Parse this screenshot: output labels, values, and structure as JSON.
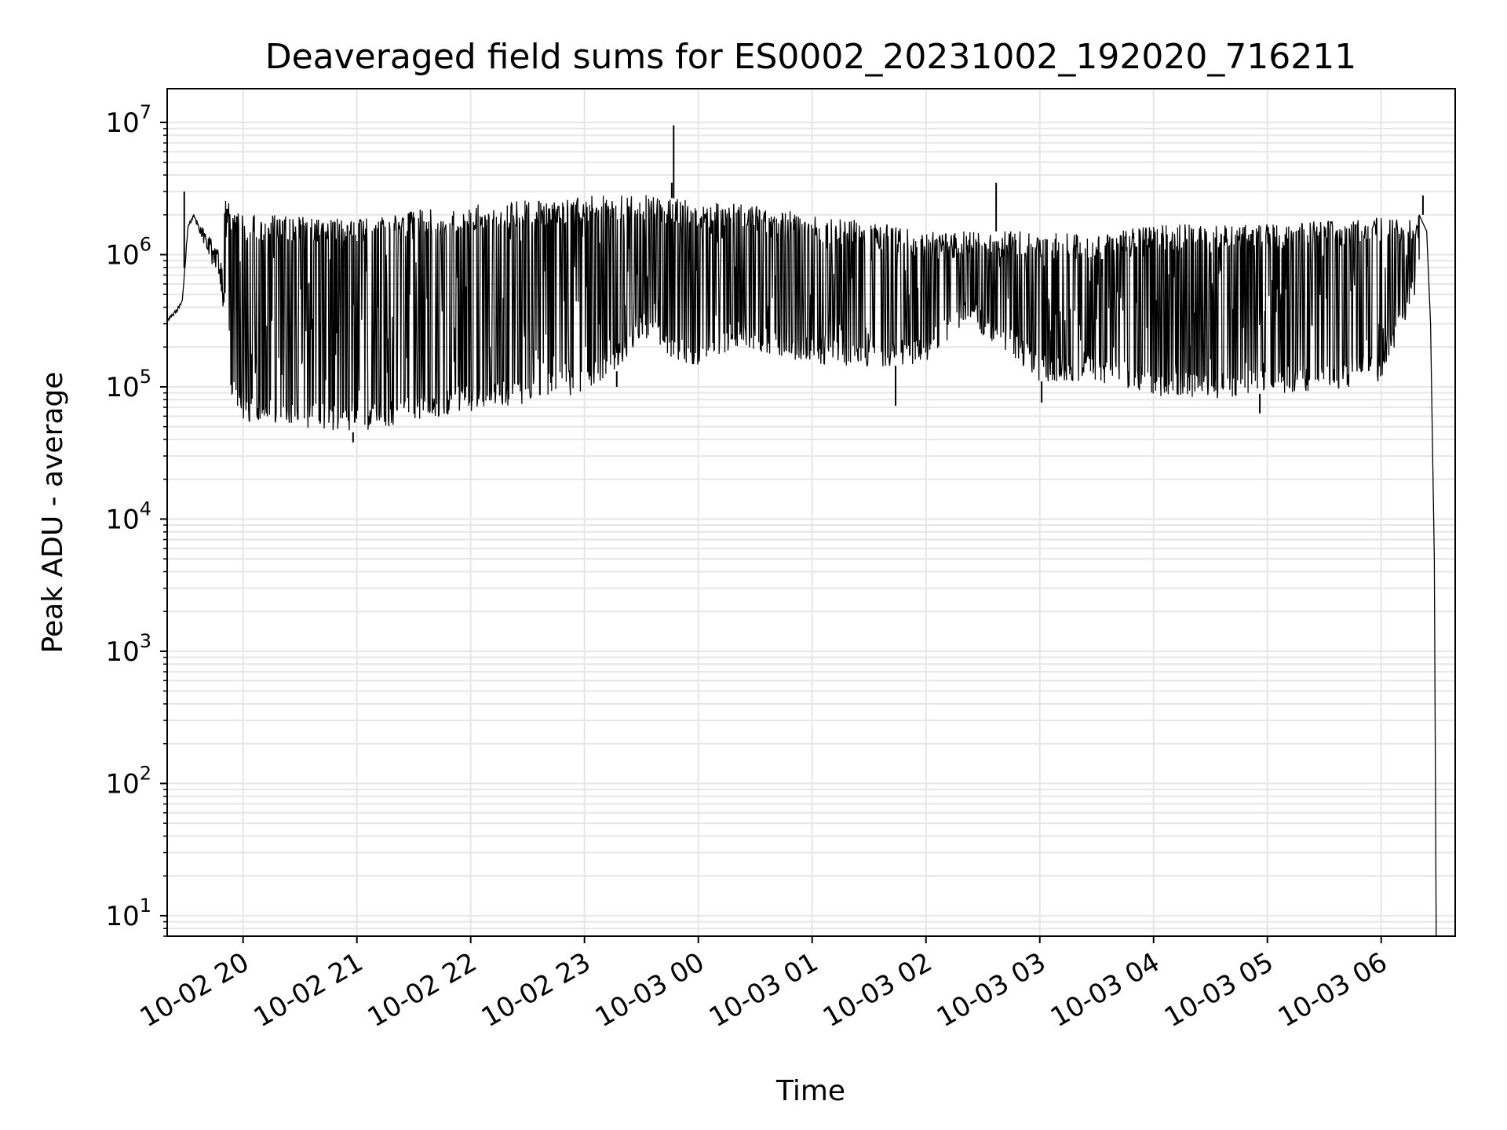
{
  "chart_data": {
    "type": "line",
    "title": "Deaveraged field sums for ES0002_20231002_192020_716211",
    "xlabel": "Time",
    "ylabel": "Peak ADU - average",
    "yscale": "log",
    "ylim": [
      7,
      18000000
    ],
    "xlim": [
      "2023-10-02 19:20",
      "2023-10-03 06:39"
    ],
    "grid": true,
    "legend": "none",
    "line_color": "#000000",
    "grid_color": "#e6e6e6",
    "x_ticks": [
      {
        "value": "2023-10-02 20:00",
        "label": "10-02 20"
      },
      {
        "value": "2023-10-02 21:00",
        "label": "10-02 21"
      },
      {
        "value": "2023-10-02 22:00",
        "label": "10-02 22"
      },
      {
        "value": "2023-10-02 23:00",
        "label": "10-02 23"
      },
      {
        "value": "2023-10-03 00:00",
        "label": "10-03 00"
      },
      {
        "value": "2023-10-03 01:00",
        "label": "10-03 01"
      },
      {
        "value": "2023-10-03 02:00",
        "label": "10-03 02"
      },
      {
        "value": "2023-10-03 03:00",
        "label": "10-03 03"
      },
      {
        "value": "2023-10-03 04:00",
        "label": "10-03 04"
      },
      {
        "value": "2023-10-03 05:00",
        "label": "10-03 05"
      },
      {
        "value": "2023-10-03 06:00",
        "label": "10-03 06"
      }
    ],
    "y_ticks": [
      {
        "value": 10,
        "base": "10",
        "exp": "1"
      },
      {
        "value": 100,
        "base": "10",
        "exp": "2"
      },
      {
        "value": 1000,
        "base": "10",
        "exp": "3"
      },
      {
        "value": 10000,
        "base": "10",
        "exp": "4"
      },
      {
        "value": 100000,
        "base": "10",
        "exp": "5"
      },
      {
        "value": 1000000,
        "base": "10",
        "exp": "6"
      },
      {
        "value": 10000000,
        "base": "10",
        "exp": "7"
      }
    ],
    "series": [
      {
        "lower_envelope": [
          [
            "2023-10-02 19:20",
            300000
          ],
          [
            "2023-10-02 19:25",
            350000
          ],
          [
            "2023-10-02 19:28",
            420000
          ],
          [
            "2023-10-02 19:31",
            1500000
          ],
          [
            "2023-10-02 19:34",
            1800000
          ],
          [
            "2023-10-02 19:38",
            1100000
          ],
          [
            "2023-10-02 19:42",
            700000
          ],
          [
            "2023-10-02 19:46",
            500000
          ],
          [
            "2023-10-02 19:50",
            200000
          ],
          [
            "2023-10-02 19:55",
            70000
          ],
          [
            "2023-10-02 20:00",
            55000
          ],
          [
            "2023-10-02 20:30",
            50000
          ],
          [
            "2023-10-02 21:00",
            45000
          ],
          [
            "2023-10-02 21:30",
            55000
          ],
          [
            "2023-10-02 22:00",
            65000
          ],
          [
            "2023-10-02 22:30",
            75000
          ],
          [
            "2023-10-02 23:00",
            90000
          ],
          [
            "2023-10-02 23:20",
            140000
          ],
          [
            "2023-10-02 23:30",
            250000
          ],
          [
            "2023-10-02 23:45",
            150000
          ],
          [
            "2023-10-03 00:00",
            140000
          ],
          [
            "2023-10-03 00:20",
            200000
          ],
          [
            "2023-10-03 00:40",
            170000
          ],
          [
            "2023-10-03 01:00",
            150000
          ],
          [
            "2023-10-03 01:30",
            140000
          ],
          [
            "2023-10-03 02:00",
            150000
          ],
          [
            "2023-10-03 02:20",
            300000
          ],
          [
            "2023-10-03 02:40",
            200000
          ],
          [
            "2023-10-03 03:00",
            110000
          ],
          [
            "2023-10-03 03:30",
            110000
          ],
          [
            "2023-10-03 04:00",
            85000
          ],
          [
            "2023-10-03 04:30",
            80000
          ],
          [
            "2023-10-03 05:00",
            90000
          ],
          [
            "2023-10-03 05:30",
            90000
          ],
          [
            "2023-10-03 06:00",
            110000
          ],
          [
            "2023-10-03 06:10",
            250000
          ],
          [
            "2023-10-03 06:20",
            600000
          ]
        ],
        "upper_envelope": [
          [
            "2023-10-02 19:20",
            350000
          ],
          [
            "2023-10-02 19:28",
            500000
          ],
          [
            "2023-10-02 19:31",
            2000000
          ],
          [
            "2023-10-02 19:36",
            2500000
          ],
          [
            "2023-10-02 19:45",
            3000000
          ],
          [
            "2023-10-02 20:00",
            2000000
          ],
          [
            "2023-10-02 20:30",
            2000000
          ],
          [
            "2023-10-02 21:00",
            1900000
          ],
          [
            "2023-10-02 21:30",
            2200000
          ],
          [
            "2023-10-02 22:00",
            2400000
          ],
          [
            "2023-10-02 22:30",
            2600000
          ],
          [
            "2023-10-02 23:00",
            2800000
          ],
          [
            "2023-10-02 23:30",
            2900000
          ],
          [
            "2023-10-03 00:00",
            2500000
          ],
          [
            "2023-10-03 00:30",
            2400000
          ],
          [
            "2023-10-03 01:00",
            2000000
          ],
          [
            "2023-10-03 01:30",
            1800000
          ],
          [
            "2023-10-03 02:00",
            1500000
          ],
          [
            "2023-10-03 02:30",
            1500000
          ],
          [
            "2023-10-03 03:00",
            1500000
          ],
          [
            "2023-10-03 03:30",
            1400000
          ],
          [
            "2023-10-03 04:00",
            1700000
          ],
          [
            "2023-10-03 04:30",
            1700000
          ],
          [
            "2023-10-03 05:00",
            1700000
          ],
          [
            "2023-10-03 05:30",
            1800000
          ],
          [
            "2023-10-03 06:00",
            1900000
          ],
          [
            "2023-10-03 06:15",
            1900000
          ],
          [
            "2023-10-03 06:20",
            2000000
          ]
        ],
        "spikes": [
          [
            "2023-10-02 19:29",
            3000000
          ],
          [
            "2023-10-02 23:47",
            9500000
          ],
          [
            "2023-10-02 23:46",
            3500000
          ],
          [
            "2023-10-03 02:37",
            3500000
          ],
          [
            "2023-10-03 06:22",
            2800000
          ]
        ],
        "dips": [
          [
            "2023-10-02 20:58",
            38000
          ],
          [
            "2023-10-02 23:17",
            100000
          ],
          [
            "2023-10-03 01:44",
            72000
          ],
          [
            "2023-10-03 03:01",
            76000
          ],
          [
            "2023-10-03 04:56",
            63000
          ]
        ],
        "tail": [
          [
            "2023-10-03 06:20",
            2000000
          ],
          [
            "2023-10-03 06:24",
            1500000
          ],
          [
            "2023-10-03 06:26",
            300000
          ],
          [
            "2023-10-03 06:28",
            5000
          ],
          [
            "2023-10-03 06:29",
            7
          ]
        ]
      }
    ]
  }
}
